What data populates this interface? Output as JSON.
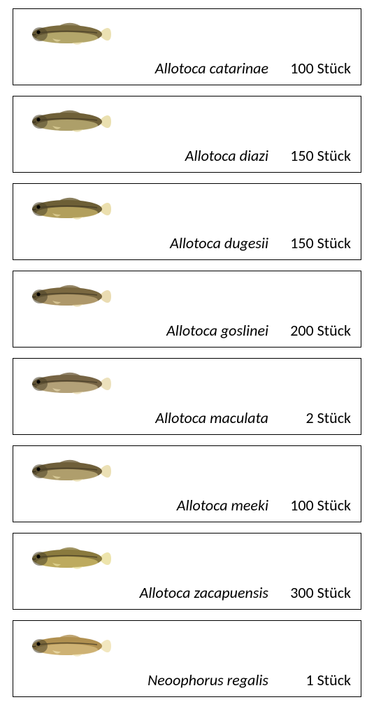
{
  "cards": [
    {
      "species": "Allotoca catarinae",
      "count": "100 Stück",
      "fish_body": "#7a6b3f",
      "fish_belly": "#c7b97a",
      "tail": "#e8dca6"
    },
    {
      "species": "Allotoca diazi",
      "count": "150 Stück",
      "fish_body": "#6f6038",
      "fish_belly": "#c2b47a",
      "tail": "#e6daa2"
    },
    {
      "species": "Allotoca dugesii",
      "count": "150 Stück",
      "fish_body": "#6d5f36",
      "fish_belly": "#c9b46a",
      "tail": "#e7d9a0"
    },
    {
      "species": "Allotoca goslinei",
      "count": "200 Stück",
      "fish_body": "#7a6840",
      "fish_belly": "#c0a878",
      "tail": "#e6d6a4"
    },
    {
      "species": "Allotoca maculata",
      "count": "2 Stück",
      "fish_body": "#766444",
      "fish_belly": "#c8b58a",
      "tail": "#e9dcb0"
    },
    {
      "species": "Allotoca meeki",
      "count": "100 Stück",
      "fish_body": "#6f5f3a",
      "fish_belly": "#c4b37e",
      "tail": "#e8dba8"
    },
    {
      "species": "Allotoca zacapuensis",
      "count": "300 Stück",
      "fish_body": "#8a7a3e",
      "fish_belly": "#cdbb6a",
      "tail": "#eadf9e"
    },
    {
      "species": "Neoophorus regalis",
      "count": "1 Stück",
      "fish_body": "#b09050",
      "fish_belly": "#d8be80",
      "tail": "#f0e3b4"
    }
  ],
  "style": {
    "card_border": "#000000",
    "card_bg": "#ffffff",
    "text_color": "#000000",
    "species_fontsize": 22,
    "count_fontsize": 22,
    "fish_width": 120,
    "fish_height": 44
  }
}
